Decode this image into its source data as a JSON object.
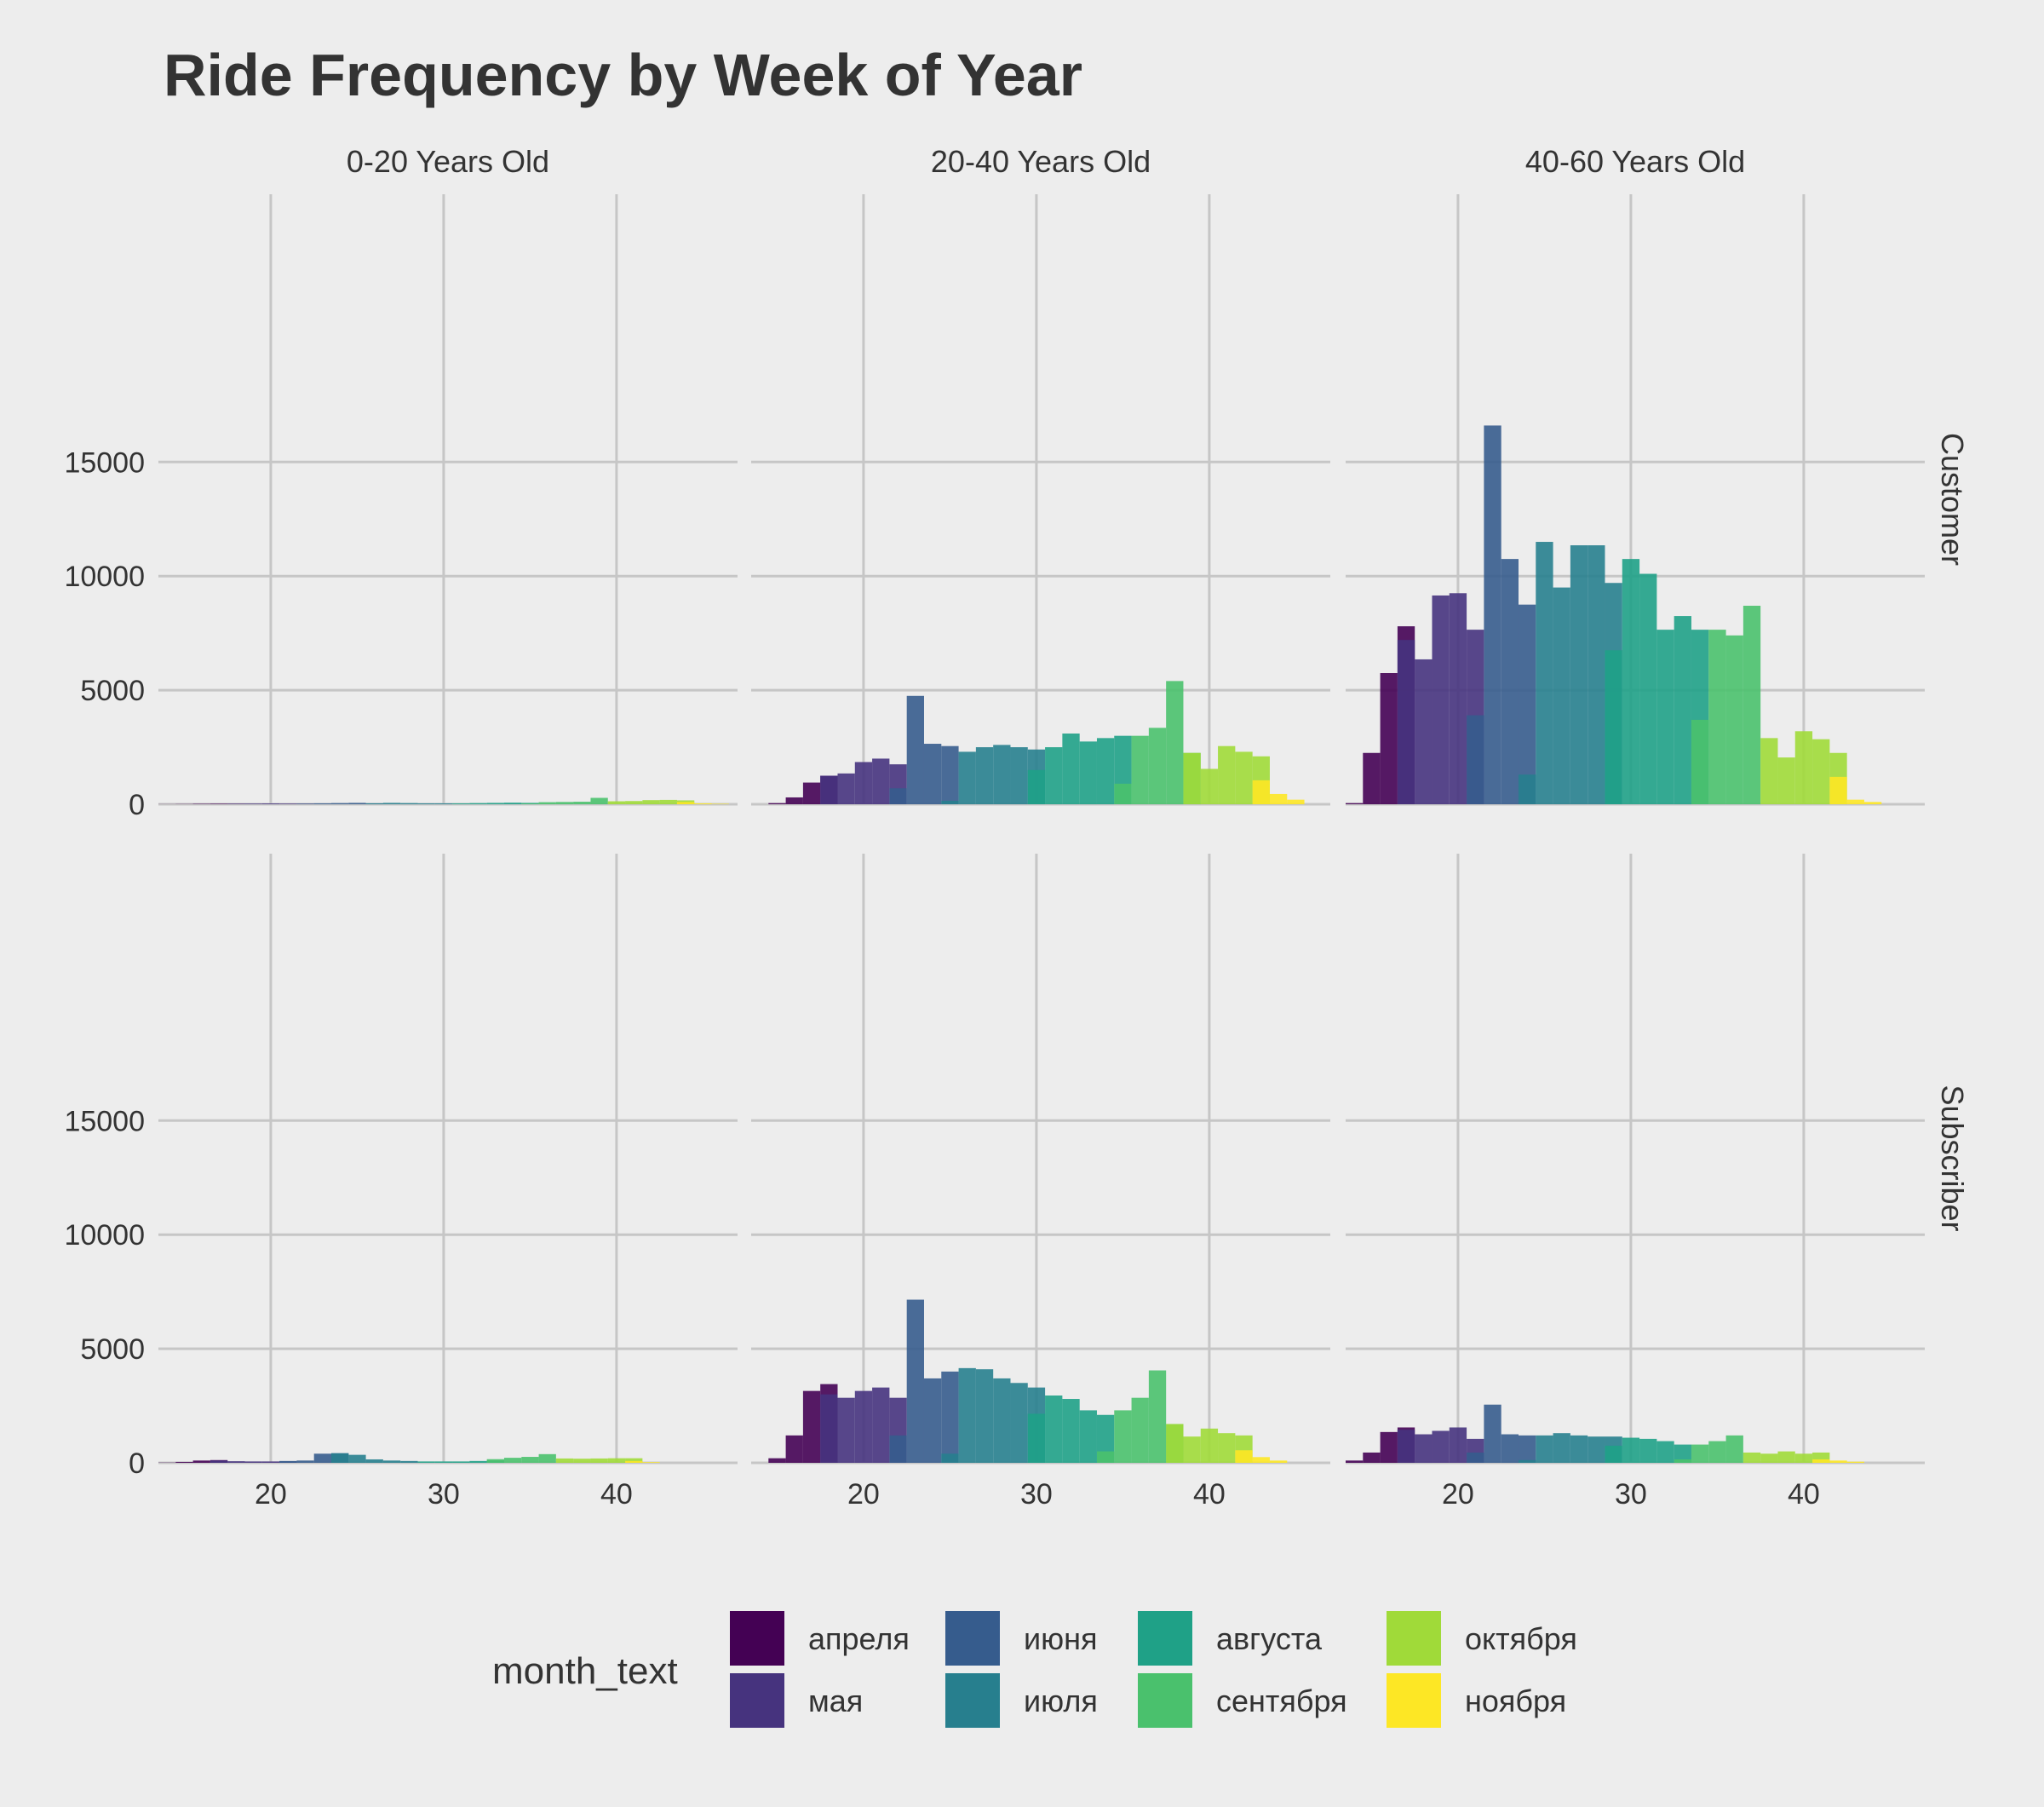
{
  "chart_data": {
    "type": "bar",
    "title": "Ride Frequency by Week of Year",
    "xlabel": "",
    "ylabel": "",
    "xlim": [
      13.5,
      47
    ],
    "ylim": [
      0,
      17500
    ],
    "x_ticks": [
      20,
      30,
      40
    ],
    "y_ticks": [
      0,
      5000,
      10000,
      15000
    ],
    "grid": true,
    "facet_columns": [
      "0-20 Years Old",
      "20-40 Years Old",
      "40-60 Years Old"
    ],
    "facet_rows": [
      "Customer",
      "Subscriber"
    ],
    "legend": {
      "title": "month_text",
      "position": "bottom",
      "entries": [
        {
          "key": "apr",
          "label": "апреля",
          "color": "#440154"
        },
        {
          "key": "may",
          "label": "мая",
          "color": "#46337e"
        },
        {
          "key": "jun",
          "label": "июня",
          "color": "#365c8d"
        },
        {
          "key": "jul",
          "label": "июля",
          "color": "#277f8e"
        },
        {
          "key": "aug",
          "label": "августа",
          "color": "#1fa187"
        },
        {
          "key": "sep",
          "label": "сентября",
          "color": "#4ac16d"
        },
        {
          "key": "oct",
          "label": "октября",
          "color": "#a0da39"
        },
        {
          "key": "nov",
          "label": "ноября",
          "color": "#fde725"
        }
      ]
    },
    "panels": [
      {
        "column": "0-20 Years Old",
        "row": "Customer",
        "series": {
          "apr": [
            [
              14,
              5
            ],
            [
              15,
              10
            ],
            [
              16,
              20
            ],
            [
              17,
              25
            ],
            [
              18,
              25
            ]
          ],
          "may": [
            [
              18,
              20
            ],
            [
              19,
              30
            ],
            [
              20,
              35
            ],
            [
              21,
              30
            ],
            [
              22,
              30
            ]
          ],
          "jun": [
            [
              22,
              20
            ],
            [
              23,
              40
            ],
            [
              24,
              50
            ],
            [
              25,
              60
            ],
            [
              26,
              40
            ]
          ],
          "jul": [
            [
              26,
              40
            ],
            [
              27,
              60
            ],
            [
              28,
              50
            ],
            [
              29,
              40
            ],
            [
              30,
              40
            ]
          ],
          "aug": [
            [
              31,
              40
            ],
            [
              32,
              50
            ],
            [
              33,
              60
            ],
            [
              34,
              70
            ],
            [
              35,
              60
            ]
          ],
          "sep": [
            [
              35,
              30
            ],
            [
              36,
              90
            ],
            [
              37,
              100
            ],
            [
              38,
              110
            ],
            [
              39,
              280
            ]
          ],
          "oct": [
            [
              40,
              130
            ],
            [
              41,
              140
            ],
            [
              42,
              180
            ],
            [
              43,
              190
            ],
            [
              44,
              170
            ]
          ],
          "nov": [
            [
              44,
              100
            ],
            [
              45,
              40
            ],
            [
              46,
              20
            ]
          ]
        }
      },
      {
        "column": "20-40 Years Old",
        "row": "Customer",
        "series": {
          "apr": [
            [
              15,
              50
            ],
            [
              16,
              300
            ],
            [
              17,
              950
            ],
            [
              18,
              1250
            ]
          ],
          "may": [
            [
              18,
              1250
            ],
            [
              19,
              1350
            ],
            [
              20,
              1850
            ],
            [
              21,
              2000
            ],
            [
              22,
              1750
            ]
          ],
          "jun": [
            [
              22,
              700
            ],
            [
              23,
              4750
            ],
            [
              24,
              2650
            ],
            [
              25,
              2550
            ]
          ],
          "jul": [
            [
              25,
              150
            ],
            [
              26,
              2300
            ],
            [
              27,
              2500
            ],
            [
              28,
              2600
            ],
            [
              29,
              2500
            ],
            [
              30,
              2400
            ]
          ],
          "aug": [
            [
              30,
              1500
            ],
            [
              31,
              2500
            ],
            [
              32,
              3100
            ],
            [
              33,
              2750
            ],
            [
              34,
              2900
            ],
            [
              35,
              3000
            ]
          ],
          "sep": [
            [
              35,
              900
            ],
            [
              36,
              3000
            ],
            [
              37,
              3350
            ],
            [
              38,
              5400
            ],
            [
              39,
              2250
            ]
          ],
          "oct": [
            [
              39,
              2250
            ],
            [
              40,
              1550
            ],
            [
              41,
              2550
            ],
            [
              42,
              2300
            ],
            [
              43,
              2100
            ]
          ],
          "nov": [
            [
              43,
              1050
            ],
            [
              44,
              450
            ],
            [
              45,
              200
            ]
          ]
        }
      },
      {
        "column": "40-60 Years Old",
        "row": "Customer",
        "series": {
          "apr": [
            [
              14,
              50
            ],
            [
              15,
              2250
            ],
            [
              16,
              5750
            ],
            [
              17,
              7800
            ]
          ],
          "may": [
            [
              17,
              7200
            ],
            [
              18,
              6350
            ],
            [
              19,
              9150
            ],
            [
              20,
              9250
            ],
            [
              21,
              7650
            ]
          ],
          "jun": [
            [
              21,
              3900
            ],
            [
              22,
              16600
            ],
            [
              23,
              10750
            ],
            [
              24,
              8750
            ]
          ],
          "jul": [
            [
              24,
              1300
            ],
            [
              25,
              11500
            ],
            [
              26,
              9500
            ],
            [
              27,
              11350
            ],
            [
              28,
              11350
            ],
            [
              29,
              9700
            ]
          ],
          "aug": [
            [
              29,
              6750
            ],
            [
              30,
              10750
            ],
            [
              31,
              10100
            ],
            [
              32,
              7650
            ],
            [
              33,
              8250
            ],
            [
              34,
              7650
            ]
          ],
          "sep": [
            [
              34,
              3700
            ],
            [
              35,
              7650
            ],
            [
              36,
              7400
            ],
            [
              37,
              8700
            ]
          ],
          "oct": [
            [
              38,
              2900
            ],
            [
              39,
              2050
            ],
            [
              40,
              3200
            ],
            [
              41,
              2850
            ],
            [
              42,
              2250
            ]
          ],
          "nov": [
            [
              42,
              1200
            ],
            [
              43,
              200
            ],
            [
              44,
              100
            ]
          ]
        }
      },
      {
        "column": "0-20 Years Old",
        "row": "Subscriber",
        "series": {
          "apr": [
            [
              14,
              10
            ],
            [
              15,
              40
            ],
            [
              16,
              100
            ],
            [
              17,
              120
            ]
          ],
          "may": [
            [
              17,
              100
            ],
            [
              18,
              70
            ],
            [
              19,
              60
            ],
            [
              20,
              60
            ],
            [
              21,
              60
            ]
          ],
          "jun": [
            [
              21,
              80
            ],
            [
              22,
              100
            ],
            [
              23,
              400
            ],
            [
              24,
              420
            ]
          ],
          "jul": [
            [
              24,
              420
            ],
            [
              25,
              350
            ],
            [
              26,
              150
            ],
            [
              27,
              100
            ],
            [
              28,
              80
            ]
          ],
          "aug": [
            [
              29,
              60
            ],
            [
              30,
              60
            ],
            [
              31,
              60
            ],
            [
              32,
              80
            ],
            [
              33,
              100
            ]
          ],
          "sep": [
            [
              33,
              160
            ],
            [
              34,
              220
            ],
            [
              35,
              260
            ],
            [
              36,
              380
            ]
          ],
          "oct": [
            [
              37,
              190
            ],
            [
              38,
              180
            ],
            [
              39,
              190
            ],
            [
              40,
              200
            ],
            [
              41,
              200
            ]
          ],
          "nov": [
            [
              41,
              80
            ],
            [
              42,
              30
            ]
          ]
        }
      },
      {
        "column": "20-40 Years Old",
        "row": "Subscriber",
        "series": {
          "apr": [
            [
              15,
              200
            ],
            [
              16,
              1200
            ],
            [
              17,
              3150
            ],
            [
              18,
              3450
            ]
          ],
          "may": [
            [
              18,
              3000
            ],
            [
              19,
              2850
            ],
            [
              20,
              3150
            ],
            [
              21,
              3300
            ],
            [
              22,
              2850
            ]
          ],
          "jun": [
            [
              22,
              1200
            ],
            [
              23,
              7150
            ],
            [
              24,
              3700
            ],
            [
              25,
              4000
            ]
          ],
          "jul": [
            [
              25,
              400
            ],
            [
              26,
              4150
            ],
            [
              27,
              4100
            ],
            [
              28,
              3700
            ],
            [
              29,
              3500
            ],
            [
              30,
              3300
            ]
          ],
          "aug": [
            [
              30,
              2150
            ],
            [
              31,
              2950
            ],
            [
              32,
              2800
            ],
            [
              33,
              2300
            ],
            [
              34,
              2100
            ]
          ],
          "sep": [
            [
              34,
              500
            ],
            [
              35,
              2300
            ],
            [
              36,
              2850
            ],
            [
              37,
              4050
            ],
            [
              38,
              1700
            ]
          ],
          "oct": [
            [
              38,
              1700
            ],
            [
              39,
              1150
            ],
            [
              40,
              1500
            ],
            [
              41,
              1300
            ],
            [
              42,
              1200
            ]
          ],
          "nov": [
            [
              42,
              550
            ],
            [
              43,
              250
            ],
            [
              44,
              100
            ]
          ]
        }
      },
      {
        "column": "40-60 Years Old",
        "row": "Subscriber",
        "series": {
          "apr": [
            [
              14,
              100
            ],
            [
              15,
              450
            ],
            [
              16,
              1350
            ],
            [
              17,
              1550
            ]
          ],
          "may": [
            [
              17,
              1450
            ],
            [
              18,
              1250
            ],
            [
              19,
              1400
            ],
            [
              20,
              1550
            ],
            [
              21,
              1050
            ]
          ],
          "jun": [
            [
              21,
              450
            ],
            [
              22,
              2550
            ],
            [
              23,
              1250
            ],
            [
              24,
              1200
            ]
          ],
          "jul": [
            [
              24,
              120
            ],
            [
              25,
              1200
            ],
            [
              26,
              1300
            ],
            [
              27,
              1200
            ],
            [
              28,
              1150
            ],
            [
              29,
              1150
            ]
          ],
          "aug": [
            [
              29,
              750
            ],
            [
              30,
              1100
            ],
            [
              31,
              1050
            ],
            [
              32,
              950
            ],
            [
              33,
              800
            ]
          ],
          "sep": [
            [
              33,
              150
            ],
            [
              34,
              800
            ],
            [
              35,
              950
            ],
            [
              36,
              1200
            ]
          ],
          "oct": [
            [
              37,
              450
            ],
            [
              38,
              400
            ],
            [
              39,
              500
            ],
            [
              40,
              400
            ],
            [
              41,
              450
            ]
          ],
          "nov": [
            [
              41,
              150
            ],
            [
              42,
              100
            ],
            [
              43,
              50
            ]
          ]
        }
      }
    ]
  }
}
